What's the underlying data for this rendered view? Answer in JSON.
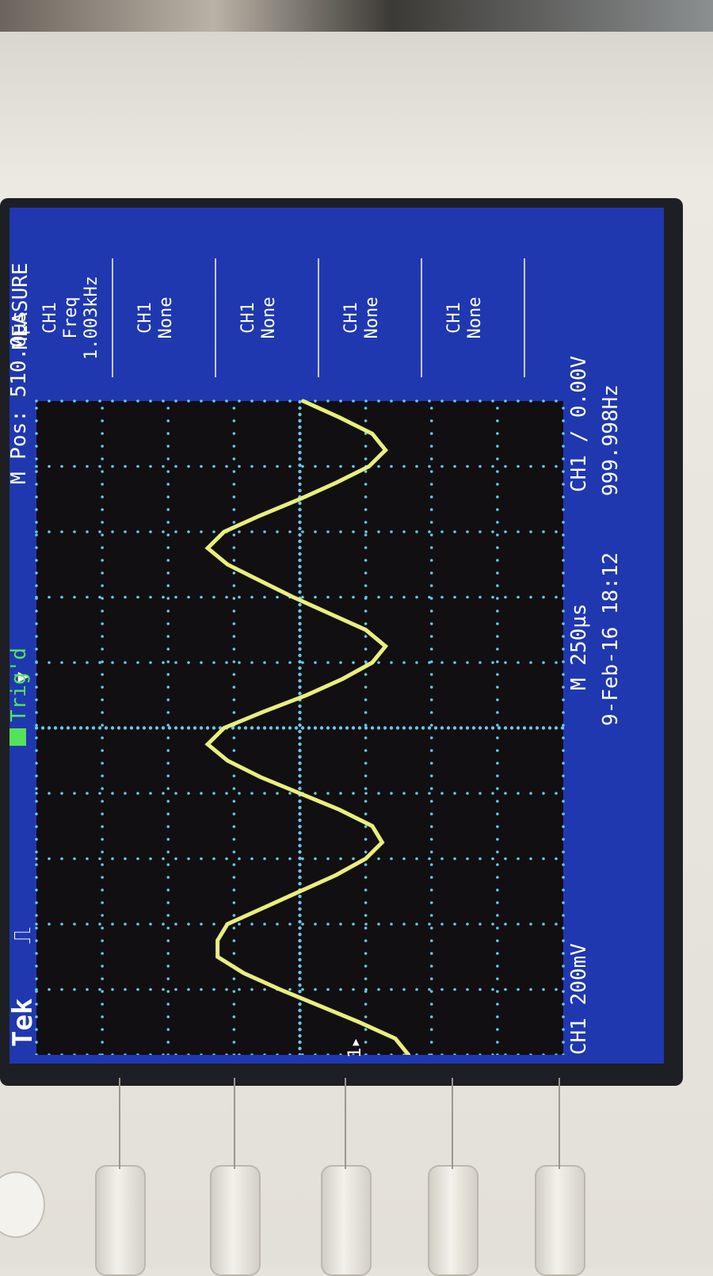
{
  "scope": {
    "brand": "Tek",
    "trigger_status": "Trig'd",
    "mpos": "M Pos: 510.0µs",
    "ch1_scale": "CH1 200mV",
    "timebase": "M 250µs",
    "trigger_setting": "CH1 ∕ 0.00V",
    "datetime": "9-Feb-16 18:12",
    "counter_freq": "999.998Hz",
    "ch1_marker": "1▸",
    "measure": {
      "title": "MEASURE",
      "slots": [
        {
          "line1": "CH1",
          "line2": "Freq",
          "line3": "1.003kHz"
        },
        {
          "line1": "CH1",
          "line2": "None",
          "line3": ""
        },
        {
          "line1": "CH1",
          "line2": "None",
          "line3": ""
        },
        {
          "line1": "CH1",
          "line2": "None",
          "line3": ""
        },
        {
          "line1": "CH1",
          "line2": "None",
          "line3": ""
        }
      ]
    }
  },
  "colors": {
    "screen_bg": "#1f38b0",
    "grid_bg": "#120f12",
    "grid_dots": "#69c8e8",
    "trace": "#e9ef7c",
    "trig_text": "#54e35a",
    "panel_text": "#ffffff"
  },
  "chart_data": {
    "type": "line",
    "ch1_volts_per_div": 0.2,
    "time_per_div_s": 0.00025,
    "x_divisions": 10,
    "y_divisions": 8,
    "series": [
      {
        "x_div": [
          0,
          0.25,
          0.5,
          0.75,
          1,
          1.25,
          1.5,
          1.75,
          2,
          2.25,
          2.5,
          2.75,
          3,
          3.25,
          3.5,
          3.75,
          4,
          4.25,
          4.5,
          4.75,
          5,
          5.25,
          5.5,
          5.75,
          6,
          6.25,
          6.5,
          6.75,
          7,
          7.25,
          7.5,
          7.75,
          8,
          8.25,
          8.5,
          8.75,
          9,
          9.25,
          9.5,
          9.75,
          10
        ],
        "y_div": [
          -1.65,
          -1.45,
          -0.9,
          -0.3,
          0.3,
          0.85,
          1.25,
          1.25,
          1.1,
          0.55,
          0.0,
          -0.55,
          -1.0,
          -1.25,
          -1.1,
          -0.6,
          0.0,
          0.6,
          1.1,
          1.4,
          1.15,
          0.55,
          -0.1,
          -0.65,
          -1.1,
          -1.3,
          -1.0,
          -0.45,
          0.1,
          0.6,
          1.1,
          1.4,
          1.15,
          0.6,
          0.0,
          -0.55,
          -1.05,
          -1.3,
          -1.1,
          -0.6,
          -0.05
        ]
      }
    ]
  }
}
